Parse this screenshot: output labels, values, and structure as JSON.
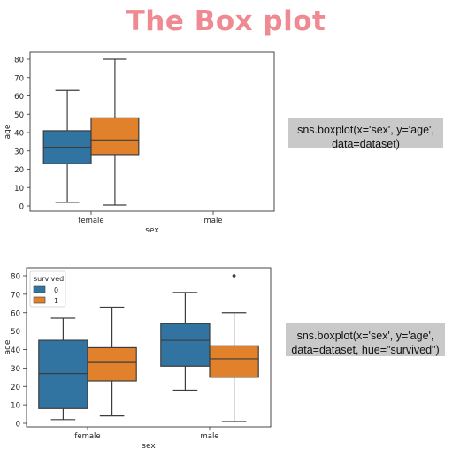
{
  "page": {
    "title": "The Box plot"
  },
  "code": [
    "sns.boxplot(x='sex', y='age', data=dataset)",
    "sns.boxplot(x='sex', y='age', data=dataset, hue=\"survived\")"
  ],
  "colors": {
    "blue": "#3274a1",
    "orange": "#e1812c",
    "title": "#f08a92",
    "code_bg": "#c9c9c9"
  },
  "chart_data": [
    {
      "type": "box",
      "xlabel": "sex",
      "ylabel": "age",
      "ylim": [
        0,
        80
      ],
      "yticks": [
        0,
        10,
        20,
        30,
        40,
        50,
        60,
        70,
        80
      ],
      "categories": [
        "female",
        "male"
      ],
      "series": [
        {
          "color": "#3274a1",
          "boxes": [
            {
              "min": 2,
              "q1": 23,
              "median": 32,
              "q3": 41,
              "max": 63
            }
          ]
        },
        {
          "color": "#e1812c",
          "boxes": [
            {
              "min": 0.5,
              "q1": 28,
              "median": 36,
              "q3": 48,
              "max": 80
            }
          ]
        }
      ],
      "grid": false
    },
    {
      "type": "box",
      "xlabel": "sex",
      "ylabel": "age",
      "ylim": [
        0,
        80
      ],
      "yticks": [
        0,
        10,
        20,
        30,
        40,
        50,
        60,
        70,
        80
      ],
      "categories": [
        "female",
        "male"
      ],
      "legend": {
        "title": "survived",
        "position": "top-left",
        "entries": [
          "0",
          "1"
        ]
      },
      "series": [
        {
          "name": "0",
          "color": "#3274a1",
          "boxes": [
            {
              "min": 2,
              "q1": 8,
              "median": 27,
              "q3": 45,
              "max": 57
            },
            {
              "min": 18,
              "q1": 31,
              "median": 45,
              "q3": 54,
              "max": 71
            }
          ]
        },
        {
          "name": "1",
          "color": "#e1812c",
          "boxes": [
            {
              "min": 4,
              "q1": 23,
              "median": 33,
              "q3": 41,
              "max": 63
            },
            {
              "min": 1,
              "q1": 25,
              "median": 35,
              "q3": 42,
              "max": 60,
              "outliers": [
                80
              ]
            }
          ]
        }
      ],
      "grid": false
    }
  ]
}
